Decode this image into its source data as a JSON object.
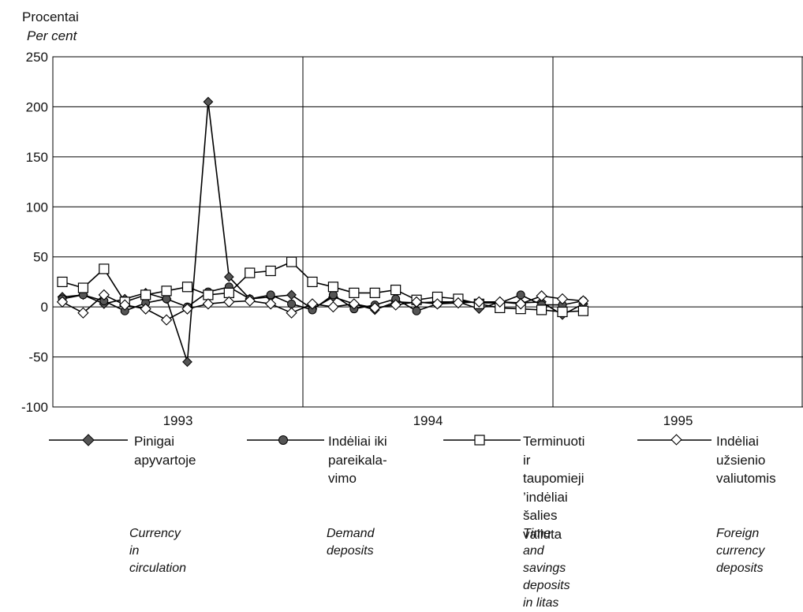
{
  "chart_data": {
    "type": "line",
    "ylabel_lt": "Procentai",
    "ylabel_en": "Per cent",
    "ylim": [
      -100,
      250
    ],
    "yticks": [
      "250",
      "200",
      "150",
      "100",
      "50",
      "0",
      "-50",
      "-100"
    ],
    "year_labels": [
      "1993",
      "1994",
      "1995"
    ],
    "grid": true,
    "x_month_index_note_omitted": true,
    "series": [
      {
        "name_lt": "Pinigai\napyvartoje",
        "name_en": "Currency in\ncirculation",
        "marker": "diamond-filled",
        "values": [
          10,
          12,
          3,
          8,
          14,
          8,
          -55,
          205,
          30,
          8,
          10,
          12,
          -2,
          10,
          3,
          -3,
          5,
          4,
          5,
          5,
          -2,
          5,
          4,
          5,
          -8,
          3
        ]
      },
      {
        "name_lt": "Indėliai iki\npareikala-\nvimo",
        "name_en": "Demand\ndeposits",
        "marker": "circle-filled",
        "values": [
          8,
          12,
          6,
          -4,
          4,
          8,
          0,
          15,
          20,
          8,
          12,
          3,
          -3,
          12,
          -2,
          2,
          8,
          -4,
          3,
          6,
          4,
          4,
          12,
          2,
          2,
          6
        ]
      },
      {
        "name_lt": "Terminuoti ir\ntaupomieji\n’indėliai\nšalies valiuta",
        "name_en": "Time and savings\ndeposits in litas",
        "marker": "square-open",
        "values": [
          25,
          19,
          38,
          5,
          12,
          16,
          20,
          12,
          14,
          34,
          36,
          45,
          25,
          20,
          14,
          14,
          17,
          7,
          10,
          8,
          3,
          -1,
          -2,
          -3,
          -5,
          -4
        ]
      },
      {
        "name_lt": "Indėliai\nužsienio\nvaliutomis",
        "name_en": "Foreign\ncurrency\ndeposits",
        "marker": "diamond-open",
        "values": [
          5,
          -6,
          12,
          2,
          -2,
          -13,
          -2,
          3,
          5,
          6,
          3,
          -6,
          3,
          0,
          3,
          -1,
          2,
          5,
          3,
          4,
          5,
          5,
          3,
          11,
          8,
          6
        ]
      }
    ]
  }
}
